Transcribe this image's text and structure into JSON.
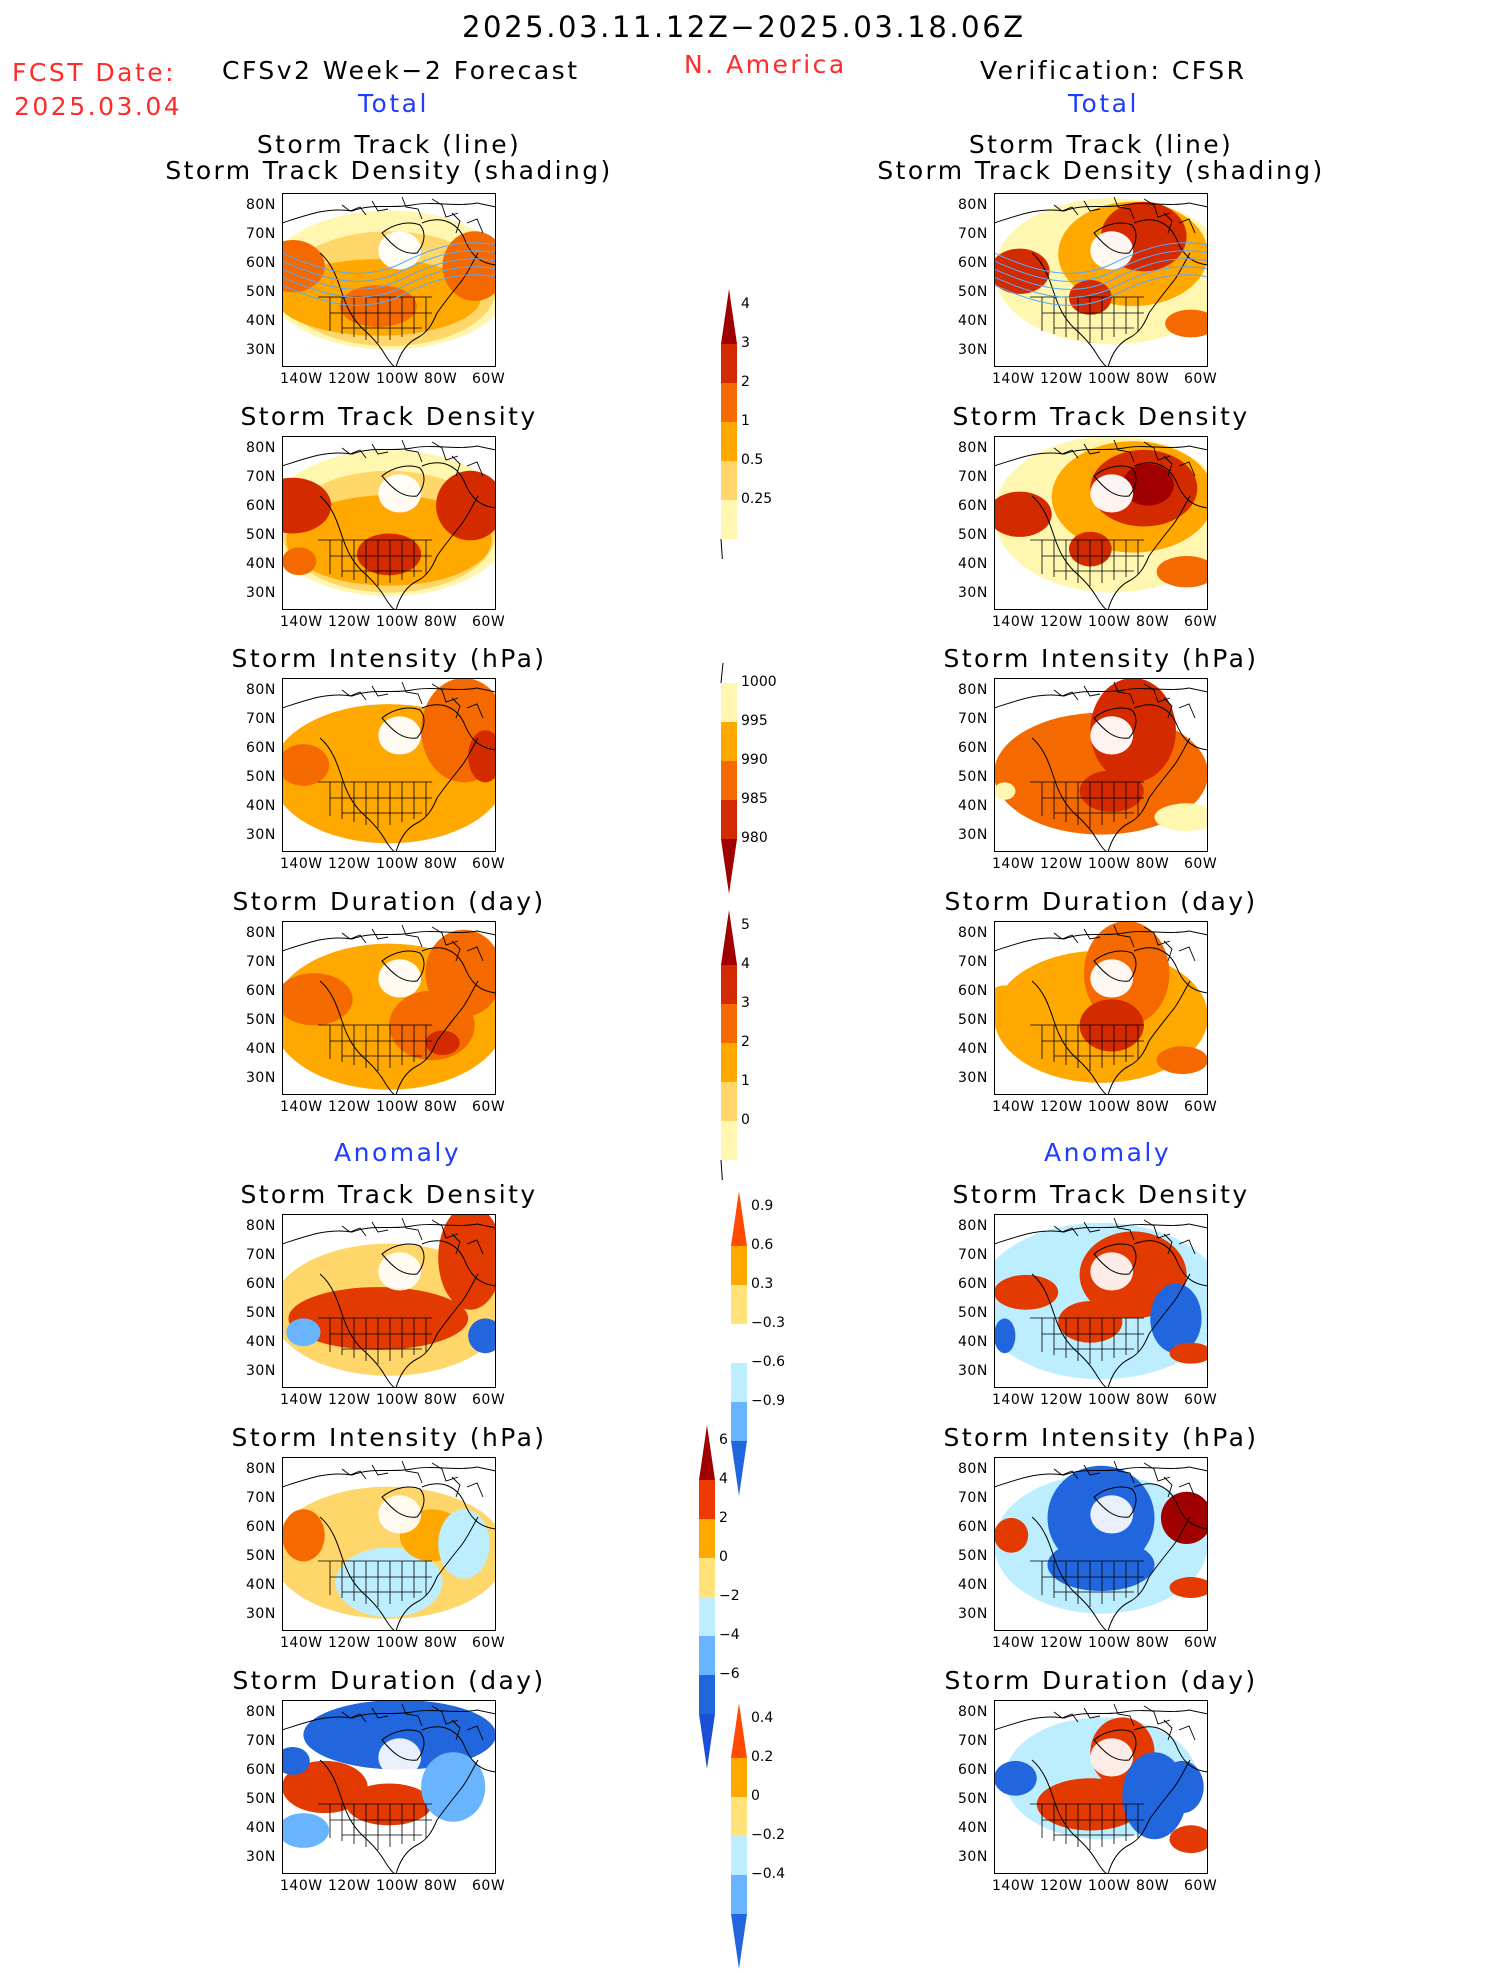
{
  "header": {
    "period": "2025.03.11.12Z−2025.03.18.06Z",
    "fcst_label": "FCST Date:",
    "fcst_date": "2025.03.04",
    "left_title": "CFSv2 Week−2 Forecast",
    "center_title": "N. America",
    "right_title": "Verification: CFSR",
    "total_label": "Total",
    "anomaly_label": "Anomaly"
  },
  "panel_titles": {
    "track_line": "Storm Track (line)",
    "track_shading": "Storm Track Density (shading)",
    "density": "Storm Track Density",
    "intensity": "Storm Intensity (hPa)",
    "duration": "Storm Duration (day)"
  },
  "axes": {
    "lat_ticks": [
      "80N",
      "70N",
      "60N",
      "50N",
      "40N",
      "30N"
    ],
    "lon_ticks": [
      "140W",
      "120W",
      "100W",
      "80W",
      "60W"
    ]
  },
  "colorbars": {
    "density": {
      "labels": [
        "4",
        "3",
        "2",
        "1",
        "0.5",
        "0.25"
      ],
      "colors": [
        "#a00000",
        "#d42a00",
        "#f46a00",
        "#ffa800",
        "#ffd66a",
        "#fff6b0"
      ]
    },
    "intensity": {
      "labels": [
        "1000",
        "995",
        "990",
        "985",
        "980"
      ],
      "colors": [
        "#fff6b0",
        "#ffa800",
        "#f46a00",
        "#d42a00",
        "#a00000"
      ]
    },
    "duration": {
      "labels": [
        "5",
        "4",
        "3",
        "2",
        "1",
        "0"
      ],
      "colors": [
        "#a00000",
        "#d42a00",
        "#f46a00",
        "#ffa800",
        "#ffd66a",
        "#fff6b0"
      ]
    },
    "anom_density": {
      "labels": [
        "0.9",
        "0.6",
        "0.3",
        "−0.3",
        "−0.6",
        "−0.9"
      ],
      "colors": [
        "#ff4a00",
        "#ffa800",
        "#ffe27a",
        "#ffffff",
        "#bdeeff",
        "#68b4ff",
        "#2266dd"
      ]
    },
    "anom_intensity": {
      "labels": [
        "6",
        "4",
        "2",
        "0",
        "−2",
        "−4",
        "−6"
      ],
      "colors": [
        "#a00000",
        "#ee3a00",
        "#ffa800",
        "#ffe27a",
        "#bdeeff",
        "#68b4ff",
        "#2266dd",
        "#1a4fd6"
      ]
    },
    "anom_duration": {
      "labels": [
        "0.4",
        "0.2",
        "0",
        "−0.2",
        "−0.4"
      ],
      "colors": [
        "#ff4a00",
        "#ffa800",
        "#ffe27a",
        "#bdeeff",
        "#68b4ff",
        "#2266dd"
      ]
    }
  }
}
